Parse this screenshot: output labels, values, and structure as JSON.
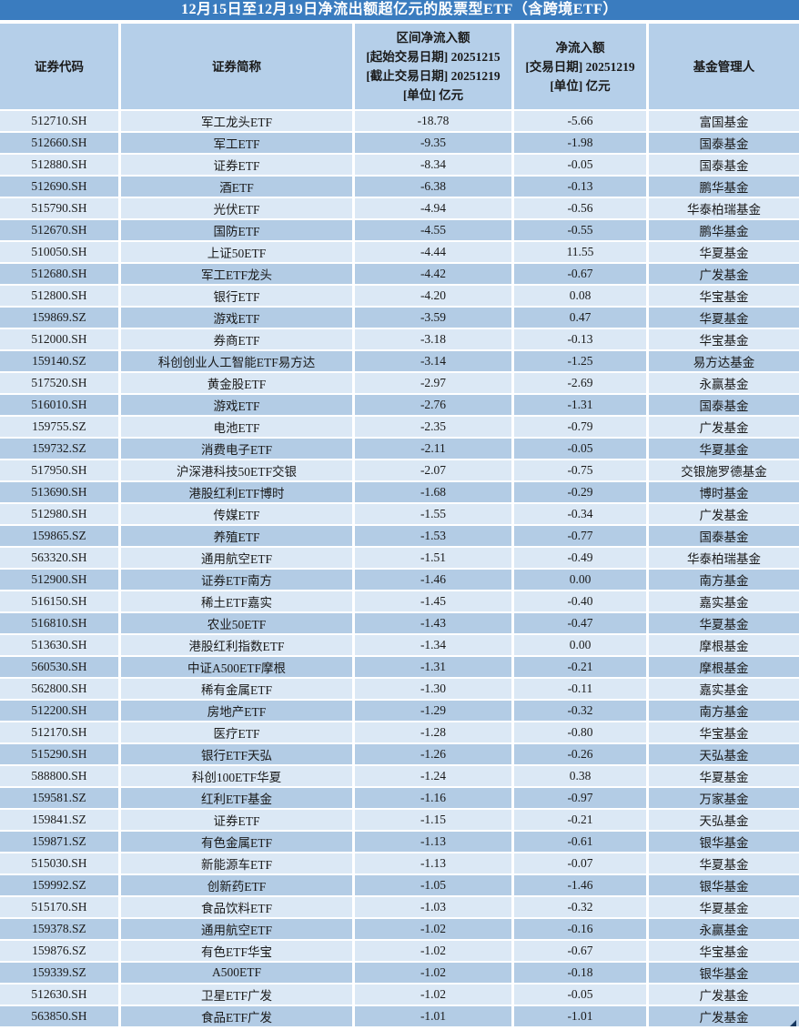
{
  "title": "12月15日至12月19日净流出额超亿元的股票型ETF（含跨境ETF）",
  "colors": {
    "title_bg": "#3A7CBF",
    "title_text": "#FFFFFF",
    "header_bg": "#B5CFE9",
    "row_light": "#DBE8F5",
    "row_dark": "#B3CCE5",
    "grid": "#FFFFFF",
    "text": "#1A1A1A",
    "fill_handle": "#17375E"
  },
  "table": {
    "headers": {
      "code": "证券代码",
      "name": "证券简称",
      "interval": [
        "区间净流入额",
        "[起始交易日期] 20251215",
        "[截止交易日期] 20251219",
        "[单位] 亿元"
      ],
      "daily": [
        "净流入额",
        "[交易日期] 20251219",
        "[单位] 亿元"
      ],
      "manager": "基金管理人"
    },
    "rows": [
      [
        "512710.SH",
        "军工龙头ETF",
        "-18.78",
        "-5.66",
        "富国基金"
      ],
      [
        "512660.SH",
        "军工ETF",
        "-9.35",
        "-1.98",
        "国泰基金"
      ],
      [
        "512880.SH",
        "证券ETF",
        "-8.34",
        "-0.05",
        "国泰基金"
      ],
      [
        "512690.SH",
        "酒ETF",
        "-6.38",
        "-0.13",
        "鹏华基金"
      ],
      [
        "515790.SH",
        "光伏ETF",
        "-4.94",
        "-0.56",
        "华泰柏瑞基金"
      ],
      [
        "512670.SH",
        "国防ETF",
        "-4.55",
        "-0.55",
        "鹏华基金"
      ],
      [
        "510050.SH",
        "上证50ETF",
        "-4.44",
        "11.55",
        "华夏基金"
      ],
      [
        "512680.SH",
        "军工ETF龙头",
        "-4.42",
        "-0.67",
        "广发基金"
      ],
      [
        "512800.SH",
        "银行ETF",
        "-4.20",
        "0.08",
        "华宝基金"
      ],
      [
        "159869.SZ",
        "游戏ETF",
        "-3.59",
        "0.47",
        "华夏基金"
      ],
      [
        "512000.SH",
        "券商ETF",
        "-3.18",
        "-0.13",
        "华宝基金"
      ],
      [
        "159140.SZ",
        "科创创业人工智能ETF易方达",
        "-3.14",
        "-1.25",
        "易方达基金"
      ],
      [
        "517520.SH",
        "黄金股ETF",
        "-2.97",
        "-2.69",
        "永赢基金"
      ],
      [
        "516010.SH",
        "游戏ETF",
        "-2.76",
        "-1.31",
        "国泰基金"
      ],
      [
        "159755.SZ",
        "电池ETF",
        "-2.35",
        "-0.79",
        "广发基金"
      ],
      [
        "159732.SZ",
        "消费电子ETF",
        "-2.11",
        "-0.05",
        "华夏基金"
      ],
      [
        "517950.SH",
        "沪深港科技50ETF交银",
        "-2.07",
        "-0.75",
        "交银施罗德基金"
      ],
      [
        "513690.SH",
        "港股红利ETF博时",
        "-1.68",
        "-0.29",
        "博时基金"
      ],
      [
        "512980.SH",
        "传媒ETF",
        "-1.55",
        "-0.34",
        "广发基金"
      ],
      [
        "159865.SZ",
        "养殖ETF",
        "-1.53",
        "-0.77",
        "国泰基金"
      ],
      [
        "563320.SH",
        "通用航空ETF",
        "-1.51",
        "-0.49",
        "华泰柏瑞基金"
      ],
      [
        "512900.SH",
        "证券ETF南方",
        "-1.46",
        "0.00",
        "南方基金"
      ],
      [
        "516150.SH",
        "稀土ETF嘉实",
        "-1.45",
        "-0.40",
        "嘉实基金"
      ],
      [
        "516810.SH",
        "农业50ETF",
        "-1.43",
        "-0.47",
        "华夏基金"
      ],
      [
        "513630.SH",
        "港股红利指数ETF",
        "-1.34",
        "0.00",
        "摩根基金"
      ],
      [
        "560530.SH",
        "中证A500ETF摩根",
        "-1.31",
        "-0.21",
        "摩根基金"
      ],
      [
        "562800.SH",
        "稀有金属ETF",
        "-1.30",
        "-0.11",
        "嘉实基金"
      ],
      [
        "512200.SH",
        "房地产ETF",
        "-1.29",
        "-0.32",
        "南方基金"
      ],
      [
        "512170.SH",
        "医疗ETF",
        "-1.28",
        "-0.80",
        "华宝基金"
      ],
      [
        "515290.SH",
        "银行ETF天弘",
        "-1.26",
        "-0.26",
        "天弘基金"
      ],
      [
        "588800.SH",
        "科创100ETF华夏",
        "-1.24",
        "0.38",
        "华夏基金"
      ],
      [
        "159581.SZ",
        "红利ETF基金",
        "-1.16",
        "-0.97",
        "万家基金"
      ],
      [
        "159841.SZ",
        "证券ETF",
        "-1.15",
        "-0.21",
        "天弘基金"
      ],
      [
        "159871.SZ",
        "有色金属ETF",
        "-1.13",
        "-0.61",
        "银华基金"
      ],
      [
        "515030.SH",
        "新能源车ETF",
        "-1.13",
        "-0.07",
        "华夏基金"
      ],
      [
        "159992.SZ",
        "创新药ETF",
        "-1.05",
        "-1.46",
        "银华基金"
      ],
      [
        "515170.SH",
        "食品饮料ETF",
        "-1.03",
        "-0.32",
        "华夏基金"
      ],
      [
        "159378.SZ",
        "通用航空ETF",
        "-1.02",
        "-0.16",
        "永赢基金"
      ],
      [
        "159876.SZ",
        "有色ETF华宝",
        "-1.02",
        "-0.67",
        "华宝基金"
      ],
      [
        "159339.SZ",
        "A500ETF",
        "-1.02",
        "-0.18",
        "银华基金"
      ],
      [
        "512630.SH",
        "卫星ETF广发",
        "-1.02",
        "-0.05",
        "广发基金"
      ],
      [
        "563850.SH",
        "食品ETF广发",
        "-1.01",
        "-1.01",
        "广发基金"
      ]
    ]
  }
}
